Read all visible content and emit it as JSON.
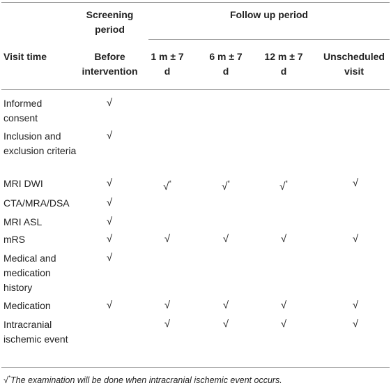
{
  "headers": {
    "screening": "Screening period",
    "followup": "Follow up period",
    "visit_time": "Visit time",
    "before": "Before intervention",
    "m1": "1 m ± 7 d",
    "m6": "6 m ± 7 d",
    "m12": "12 m ± 7 d",
    "unscheduled": "Unscheduled visit"
  },
  "check": "√",
  "star": "*",
  "rows": [
    {
      "label": "Informed consent",
      "cells": [
        "√",
        "",
        "",
        "",
        ""
      ]
    },
    {
      "label": "Inclusion and exclusion criteria",
      "cells": [
        "√",
        "",
        "",
        "",
        ""
      ]
    },
    {
      "label": "MRI DWI",
      "cells": [
        "√",
        "√*",
        "√*",
        "√*",
        "√"
      ]
    },
    {
      "label": "CTA/MRA/DSA",
      "cells": [
        "√",
        "",
        "",
        "",
        ""
      ]
    },
    {
      "label": "MRI ASL",
      "cells": [
        "√",
        "",
        "",
        "",
        ""
      ]
    },
    {
      "label": "mRS",
      "cells": [
        "√",
        "√",
        "√",
        "√",
        "√"
      ]
    },
    {
      "label": "Medical and medication history",
      "cells": [
        "√",
        "",
        "",
        "",
        ""
      ]
    },
    {
      "label": "Medication",
      "cells": [
        "√",
        "√",
        "√",
        "√",
        "√"
      ]
    },
    {
      "label": "Intracranial ischemic event",
      "cells": [
        "",
        "√",
        "√",
        "√",
        "√"
      ]
    }
  ],
  "footnote": {
    "mark": "√",
    "star": "*",
    "text": "The examination will be done when intracranial ischemic event occurs."
  }
}
